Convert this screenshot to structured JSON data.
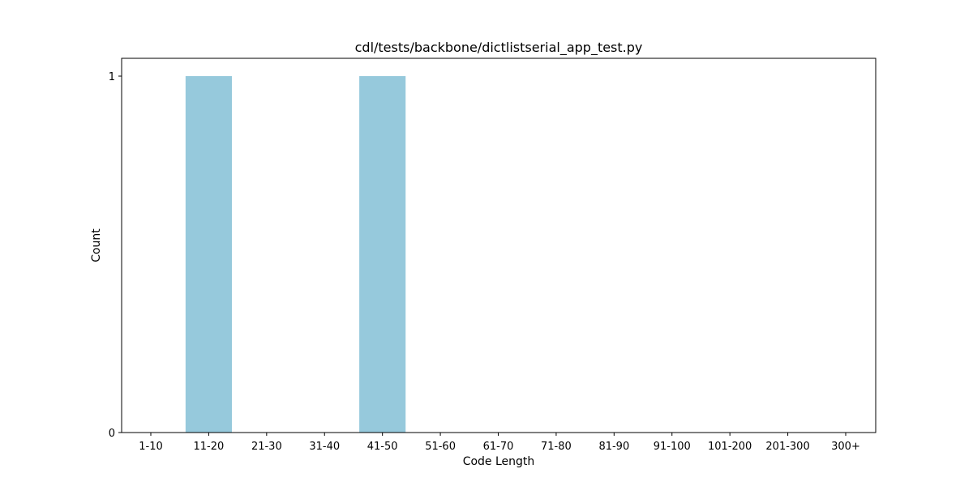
{
  "chart_data": {
    "type": "bar",
    "title": "cdl/tests/backbone/dictlistserial_app_test.py",
    "xlabel": "Code Length",
    "ylabel": "Count",
    "categories": [
      "1-10",
      "11-20",
      "21-30",
      "31-40",
      "41-50",
      "51-60",
      "61-70",
      "71-80",
      "81-90",
      "91-100",
      "101-200",
      "201-300",
      "300+"
    ],
    "values": [
      0,
      1,
      0,
      0,
      1,
      0,
      0,
      0,
      0,
      0,
      0,
      0,
      0
    ],
    "ylim": [
      0,
      1
    ],
    "yticks": [
      0,
      1
    ],
    "grid": false,
    "legend": "none",
    "bar_color": "#96c9dc"
  }
}
